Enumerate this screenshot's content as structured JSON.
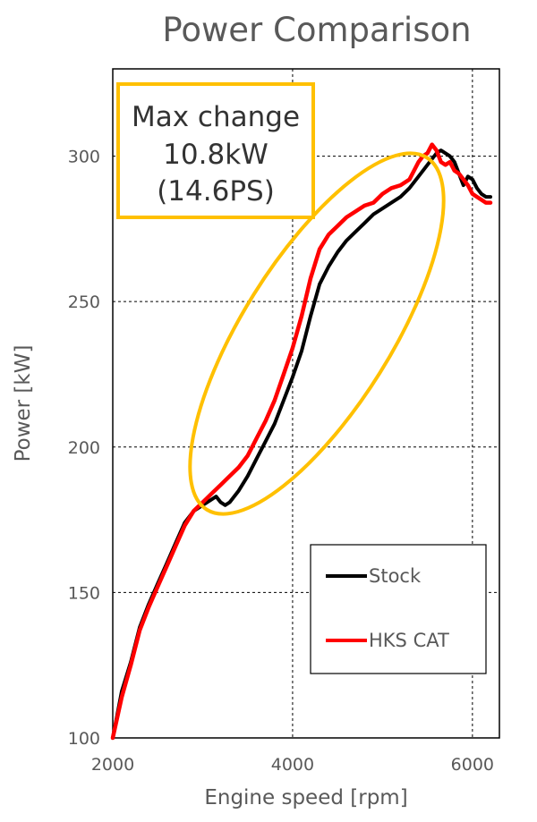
{
  "chart_data": {
    "type": "line",
    "title": "Power Comparison",
    "xlabel": "Engine speed [rpm]",
    "ylabel": "Power [kW]",
    "xlim": [
      2000,
      6300
    ],
    "ylim": [
      100,
      330
    ],
    "x_ticks": [
      2000,
      4000,
      6000
    ],
    "y_ticks": [
      100,
      150,
      200,
      250,
      300
    ],
    "grid": "dashed, major ticks",
    "legend_position": "bottom-right",
    "annotation": {
      "lines": [
        "Max change",
        "10.8kW",
        "(14.6PS)"
      ],
      "box_color": "#FFC000"
    },
    "highlight_ellipse_color": "#FFC000",
    "series": [
      {
        "name": "Stock",
        "color": "#000000",
        "x": [
          2000,
          2100,
          2200,
          2300,
          2400,
          2500,
          2600,
          2700,
          2800,
          2900,
          3000,
          3100,
          3150,
          3200,
          3250,
          3300,
          3400,
          3500,
          3600,
          3700,
          3800,
          3900,
          4000,
          4100,
          4200,
          4300,
          4400,
          4500,
          4600,
          4700,
          4800,
          4900,
          5000,
          5100,
          5200,
          5300,
          5400,
          5500,
          5600,
          5650,
          5700,
          5750,
          5800,
          5850,
          5900,
          5950,
          6000,
          6050,
          6100,
          6150,
          6200
        ],
        "values": [
          100,
          116,
          126,
          138,
          146,
          153,
          160,
          167,
          174,
          178,
          180,
          182,
          183,
          181,
          180,
          181,
          185,
          190,
          196,
          202,
          208,
          216,
          224,
          233,
          245,
          256,
          262,
          267,
          271,
          274,
          277,
          280,
          282,
          284,
          286,
          289,
          293,
          297,
          301,
          302,
          301,
          300,
          298,
          294,
          290,
          293,
          292,
          289,
          287,
          286,
          286
        ]
      },
      {
        "name": "HKS CAT",
        "color": "#FF0000",
        "x": [
          2000,
          2100,
          2200,
          2300,
          2400,
          2500,
          2600,
          2700,
          2800,
          2900,
          3000,
          3100,
          3200,
          3300,
          3400,
          3500,
          3600,
          3700,
          3800,
          3900,
          4000,
          4100,
          4200,
          4300,
          4400,
          4500,
          4600,
          4700,
          4800,
          4900,
          5000,
          5100,
          5200,
          5300,
          5400,
          5450,
          5500,
          5550,
          5600,
          5650,
          5700,
          5750,
          5800,
          5850,
          5900,
          5950,
          6000,
          6050,
          6100,
          6150,
          6200
        ],
        "values": [
          100,
          114,
          125,
          137,
          145,
          152,
          159,
          166,
          173,
          178,
          181,
          184,
          187,
          190,
          193,
          197,
          203,
          209,
          216,
          225,
          234,
          245,
          258,
          268,
          273,
          276,
          279,
          281,
          283,
          284,
          287,
          289,
          290,
          292,
          298,
          300,
          301,
          304,
          302,
          298,
          297,
          298,
          295,
          294,
          292,
          290,
          287,
          286,
          285,
          284,
          284
        ]
      }
    ]
  }
}
